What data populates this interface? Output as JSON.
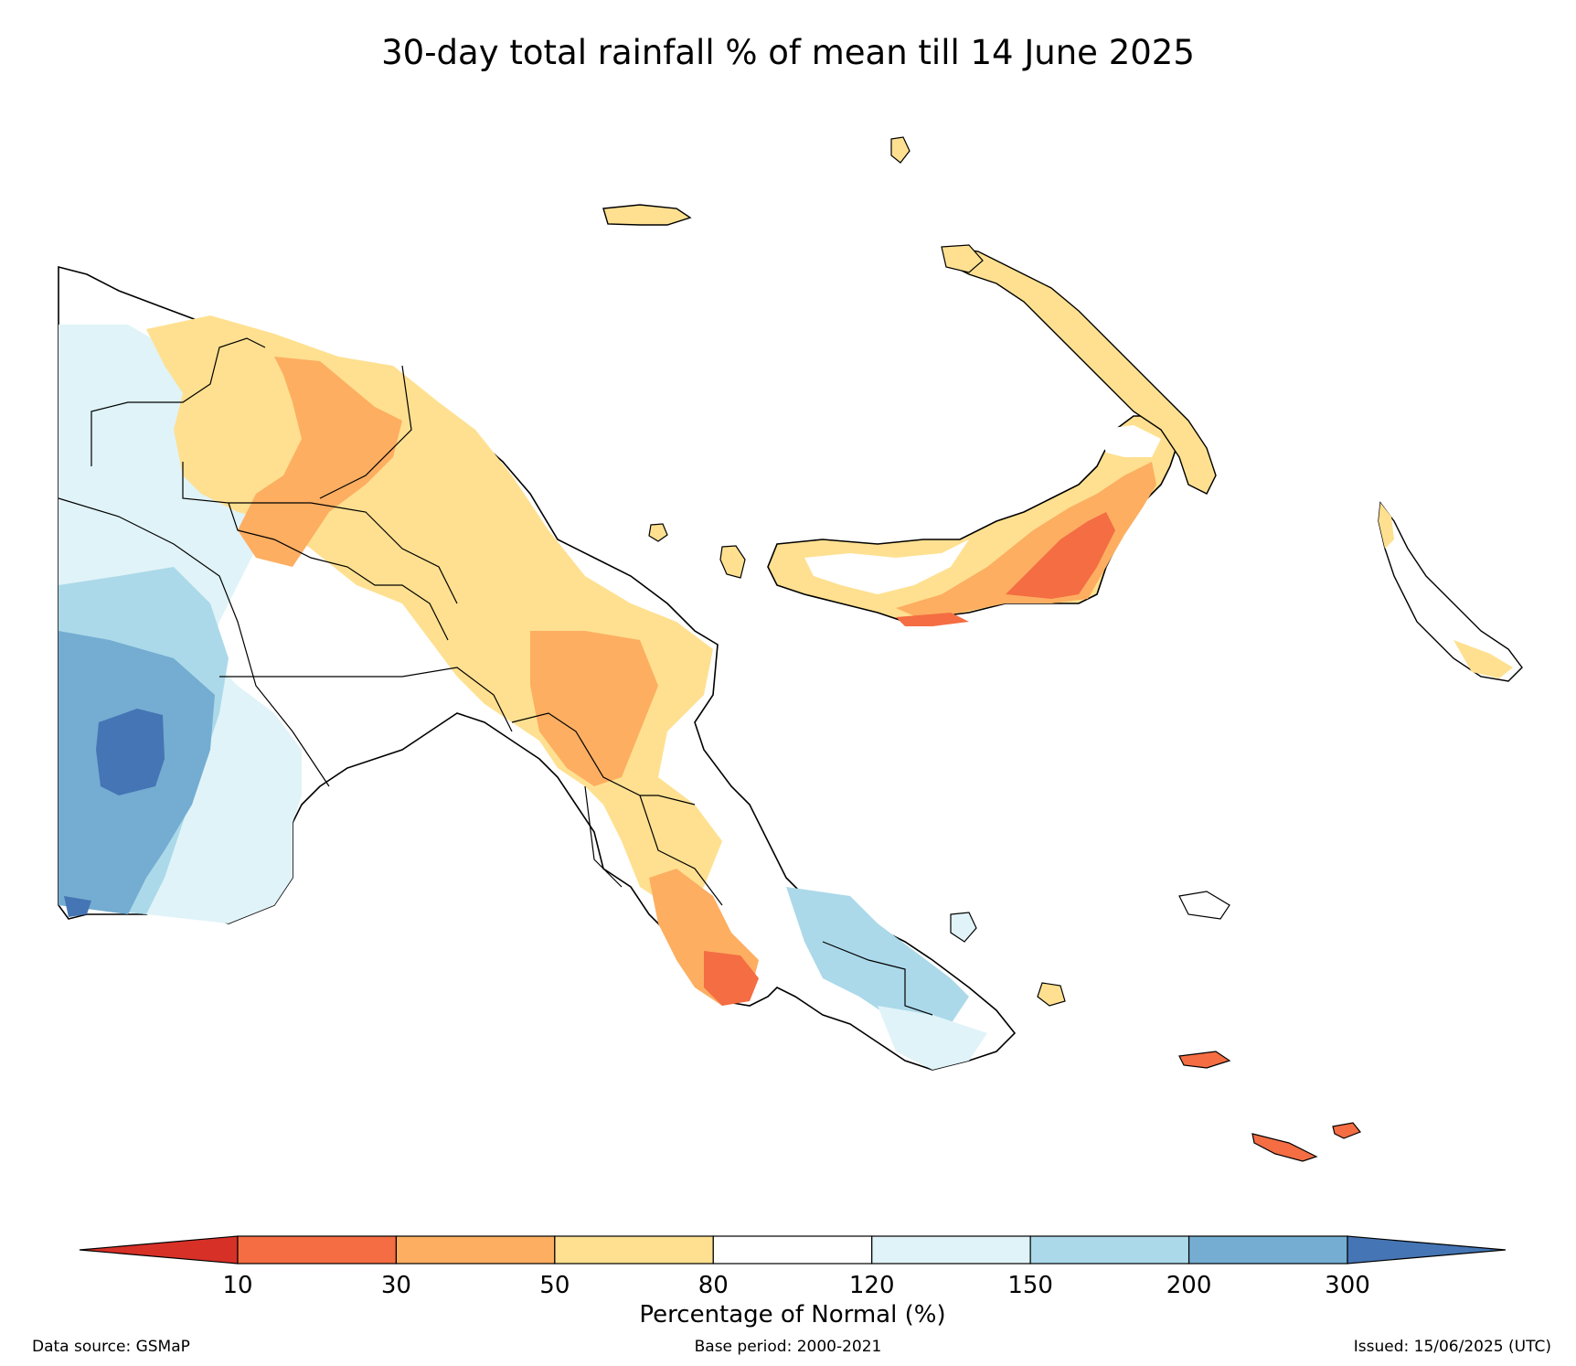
{
  "title": "30-day total rainfall % of mean till 14 June 2025",
  "colorbar": {
    "title": "Percentage of Normal (%)",
    "ticks": [
      "10",
      "30",
      "50",
      "80",
      "120",
      "150",
      "200",
      "300"
    ],
    "colors": [
      "#d73027",
      "#f46d43",
      "#fdae61",
      "#fee090",
      "#ffffff",
      "#e0f3f8",
      "#abd9e9",
      "#74add1",
      "#4575b4"
    ]
  },
  "legend_colors": {
    "lt10": "#d73027",
    "c10_30": "#f46d43",
    "c30_50": "#fdae61",
    "c50_80": "#fee090",
    "c80_120": "#ffffff",
    "c120_150": "#e0f3f8",
    "c150_200": "#abd9e9",
    "c200_300": "#74add1",
    "gt300": "#4575b4"
  },
  "footer": {
    "source": "Data source: GSMaP",
    "base": "Base period: 2000-2021",
    "issued": "Issued: 15/06/2025 (UTC)"
  }
}
